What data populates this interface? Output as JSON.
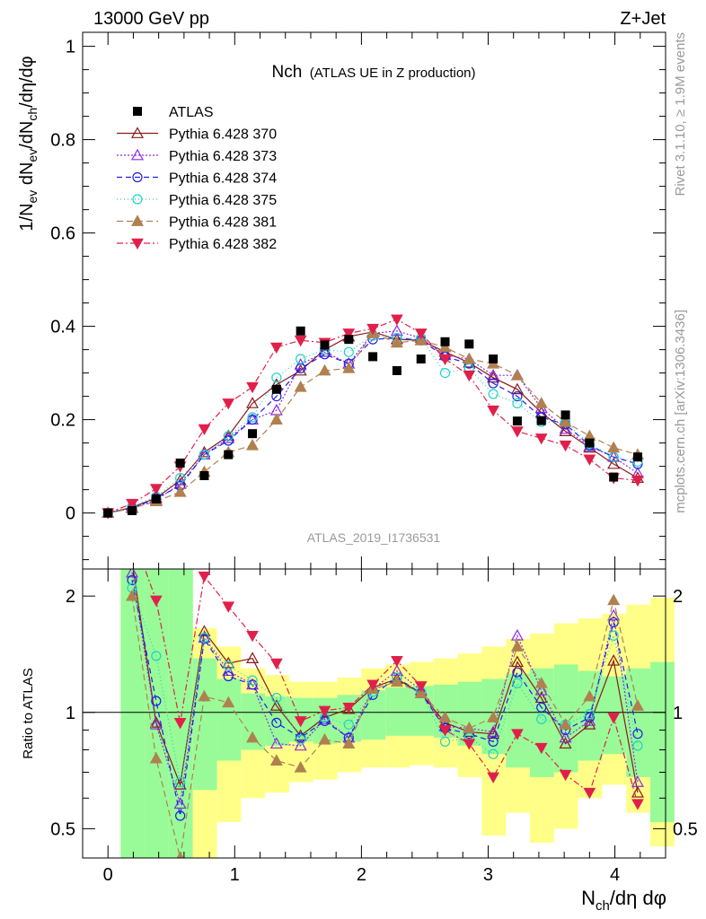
{
  "header": {
    "left": "13000 GeV pp",
    "right": "Z+Jet"
  },
  "plot_title": {
    "main": "Nch",
    "sub": "(ATLAS UE in Z production)"
  },
  "side_text": {
    "rivet": "Rivet 3.1.10, ≥ 1.9M events",
    "site": "mcplots.cern.ch [arXiv:1306.3436]"
  },
  "analysis_id": "ATLAS_2019_I1736531",
  "colors": {
    "data": "#000000",
    "s370": "#8b1a1a",
    "s373": "#8a2be2",
    "s374": "#1e1ee6",
    "s375": "#1fd3c6",
    "s381": "#b08050",
    "s382": "#e0204a",
    "band_green": "#98fb98",
    "band_yellow": "#ffff88"
  },
  "chart_data": [
    {
      "type": "line",
      "ylabel": "1/N_ev dN_ev/dN_ch/dη/dφ",
      "ylim": [
        -0.12,
        1.03
      ],
      "xlim": [
        -0.2,
        4.4
      ],
      "y_ticks": [
        "0",
        "0.2",
        "0.4",
        "0.6",
        "0.8",
        "1"
      ],
      "legend_position": "top-left",
      "x": [
        0.0,
        0.19,
        0.38,
        0.57,
        0.76,
        0.95,
        1.14,
        1.33,
        1.52,
        1.71,
        1.9,
        2.09,
        2.28,
        2.47,
        2.66,
        2.85,
        3.04,
        3.23,
        3.42,
        3.61,
        3.8,
        3.99,
        4.18
      ],
      "data": {
        "name": "ATLAS",
        "values": [
          0.0,
          0.005,
          0.03,
          0.107,
          0.08,
          0.125,
          0.17,
          0.265,
          0.39,
          0.36,
          0.372,
          0.335,
          0.305,
          0.33,
          0.367,
          0.362,
          0.33,
          0.197,
          0.198,
          0.21,
          0.15,
          0.077,
          0.12
        ]
      },
      "series": [
        {
          "name": "Pythia 6.428 370",
          "key": "s370",
          "marker": "tri-up-open",
          "dash": "",
          "values": [
            0.0,
            0.012,
            0.032,
            0.07,
            0.13,
            0.165,
            0.235,
            0.275,
            0.305,
            0.35,
            0.378,
            0.388,
            0.372,
            0.37,
            0.345,
            0.322,
            0.29,
            0.265,
            0.215,
            0.175,
            0.14,
            0.105,
            0.075
          ]
        },
        {
          "name": "Pythia 6.428 373",
          "key": "s373",
          "marker": "tri-up-open",
          "dash": "2,2",
          "values": [
            0.0,
            0.01,
            0.028,
            0.062,
            0.125,
            0.16,
            0.2,
            0.22,
            0.318,
            0.345,
            0.32,
            0.385,
            0.39,
            0.375,
            0.338,
            0.33,
            0.295,
            0.295,
            0.225,
            0.18,
            0.143,
            0.12,
            0.085
          ]
        },
        {
          "name": "Pythia 6.428 374",
          "key": "s374",
          "marker": "circle-open",
          "dash": "6,4",
          "values": [
            0.0,
            0.01,
            0.032,
            0.058,
            0.125,
            0.155,
            0.2,
            0.25,
            0.31,
            0.34,
            0.32,
            0.372,
            0.375,
            0.37,
            0.335,
            0.32,
            0.278,
            0.25,
            0.205,
            0.19,
            0.145,
            0.12,
            0.105
          ]
        },
        {
          "name": "Pythia 6.428 375",
          "key": "s375",
          "marker": "circle-open",
          "dash": "1,3",
          "values": [
            0.0,
            0.014,
            0.035,
            0.075,
            0.125,
            0.165,
            0.205,
            0.29,
            0.33,
            0.35,
            0.345,
            0.38,
            0.375,
            0.375,
            0.3,
            0.31,
            0.255,
            0.235,
            0.195,
            0.195,
            0.148,
            0.12,
            0.11
          ]
        },
        {
          "name": "Pythia 6.428 381",
          "key": "s381",
          "marker": "tri-up-filled",
          "dash": "7,4",
          "values": [
            0.0,
            0.01,
            0.025,
            0.045,
            0.088,
            0.13,
            0.145,
            0.2,
            0.27,
            0.305,
            0.31,
            0.385,
            0.365,
            0.37,
            0.355,
            0.33,
            0.32,
            0.295,
            0.235,
            0.195,
            0.165,
            0.14,
            0.125
          ]
        },
        {
          "name": "Pythia 6.428 382",
          "key": "s382",
          "marker": "tri-down-filled",
          "dash": "7,3,2,3",
          "values": [
            0.0,
            0.02,
            0.052,
            0.1,
            0.18,
            0.235,
            0.27,
            0.355,
            0.37,
            0.365,
            0.385,
            0.395,
            0.415,
            0.385,
            0.33,
            0.295,
            0.22,
            0.175,
            0.16,
            0.145,
            0.115,
            0.075,
            0.07
          ]
        }
      ]
    },
    {
      "type": "line",
      "xlabel": "N_ch/dη dφ",
      "ylabel": "Ratio to ATLAS",
      "ylog": true,
      "ylim": [
        0.42,
        2.35
      ],
      "x_ticks": [
        "0",
        "1",
        "2",
        "3",
        "4"
      ],
      "y_ticks": [
        "0.5",
        "1",
        "2"
      ],
      "reference_line": 1,
      "x": [
        0.0,
        0.19,
        0.38,
        0.57,
        0.76,
        0.95,
        1.14,
        1.33,
        1.52,
        1.71,
        1.9,
        2.09,
        2.28,
        2.47,
        2.66,
        2.85,
        3.04,
        3.23,
        3.42,
        3.61,
        3.8,
        3.99,
        4.18
      ],
      "bands": {
        "edges": [
          0.1,
          0.29,
          0.48,
          0.67,
          0.86,
          1.05,
          1.24,
          1.43,
          1.62,
          1.81,
          2.0,
          2.19,
          2.38,
          2.57,
          2.76,
          2.95,
          3.14,
          3.33,
          3.52,
          3.71,
          3.9,
          4.09,
          4.28
        ],
        "green_lo": [
          0.42,
          0.42,
          0.42,
          0.63,
          0.75,
          0.8,
          0.82,
          0.84,
          0.83,
          0.84,
          0.85,
          0.87,
          0.87,
          0.86,
          0.82,
          0.78,
          0.72,
          0.68,
          0.7,
          0.75,
          0.78,
          0.68,
          0.52
        ],
        "green_hi": [
          2.35,
          2.35,
          2.35,
          1.38,
          1.22,
          1.12,
          1.1,
          1.09,
          1.09,
          1.11,
          1.14,
          1.16,
          1.17,
          1.18,
          1.2,
          1.22,
          1.26,
          1.3,
          1.33,
          1.28,
          1.24,
          1.3,
          1.35
        ],
        "yellow_lo": [
          0.42,
          0.42,
          0.42,
          0.42,
          0.52,
          0.6,
          0.62,
          0.66,
          0.67,
          0.7,
          0.72,
          0.72,
          0.73,
          0.72,
          0.68,
          0.48,
          0.55,
          0.46,
          0.5,
          0.6,
          0.65,
          0.55,
          0.45
        ],
        "yellow_hi": [
          2.35,
          2.35,
          2.35,
          1.65,
          1.48,
          1.3,
          1.25,
          1.2,
          1.2,
          1.23,
          1.3,
          1.33,
          1.35,
          1.38,
          1.42,
          1.48,
          1.55,
          1.6,
          1.7,
          1.75,
          1.8,
          1.9,
          1.98
        ]
      },
      "series": [
        {
          "name": "Pythia 6.428 370",
          "key": "s370",
          "values": [
            null,
            2.45,
            0.94,
            0.65,
            1.62,
            1.34,
            1.38,
            1.04,
            0.87,
            0.97,
            1.02,
            1.16,
            1.22,
            1.12,
            0.94,
            0.89,
            0.88,
            1.35,
            1.09,
            0.83,
            0.93,
            1.36,
            0.62
          ]
        },
        {
          "name": "Pythia 6.428 373",
          "key": "s373",
          "values": [
            null,
            2.3,
            0.93,
            0.58,
            1.56,
            1.28,
            1.18,
            0.83,
            0.82,
            0.96,
            0.86,
            1.15,
            1.28,
            1.14,
            0.92,
            0.91,
            0.89,
            1.58,
            1.14,
            0.86,
            0.95,
            1.78,
            0.66
          ]
        },
        {
          "name": "Pythia 6.428 374",
          "key": "s374",
          "values": [
            null,
            2.2,
            1.07,
            0.54,
            1.55,
            1.24,
            1.18,
            0.94,
            0.86,
            0.95,
            0.86,
            1.11,
            1.23,
            1.12,
            0.91,
            0.88,
            0.84,
            1.27,
            1.03,
            0.9,
            0.97,
            1.71,
            0.88
          ]
        },
        {
          "name": "Pythia 6.428 375",
          "key": "s375",
          "values": [
            null,
            2.1,
            1.4,
            0.66,
            1.56,
            1.32,
            1.21,
            1.09,
            0.85,
            0.97,
            0.93,
            1.13,
            1.23,
            1.13,
            0.84,
            0.86,
            0.78,
            1.19,
            0.96,
            0.93,
            0.99,
            1.58,
            0.82
          ]
        },
        {
          "name": "Pythia 6.428 381",
          "key": "s381",
          "values": [
            null,
            2.0,
            0.76,
            0.42,
            1.1,
            1.06,
            0.86,
            0.75,
            0.72,
            0.85,
            0.83,
            1.15,
            1.2,
            1.12,
            0.97,
            0.91,
            0.97,
            1.48,
            1.19,
            0.93,
            1.1,
            1.95,
            1.04
          ]
        },
        {
          "name": "Pythia 6.428 382",
          "key": "s382",
          "values": [
            null,
            4.0,
            1.95,
            0.94,
            2.25,
            1.88,
            1.58,
            1.34,
            0.95,
            1.01,
            1.03,
            1.18,
            1.36,
            1.17,
            0.9,
            0.83,
            0.68,
            0.88,
            0.81,
            0.69,
            0.62,
            0.97,
            0.58
          ]
        }
      ]
    }
  ]
}
